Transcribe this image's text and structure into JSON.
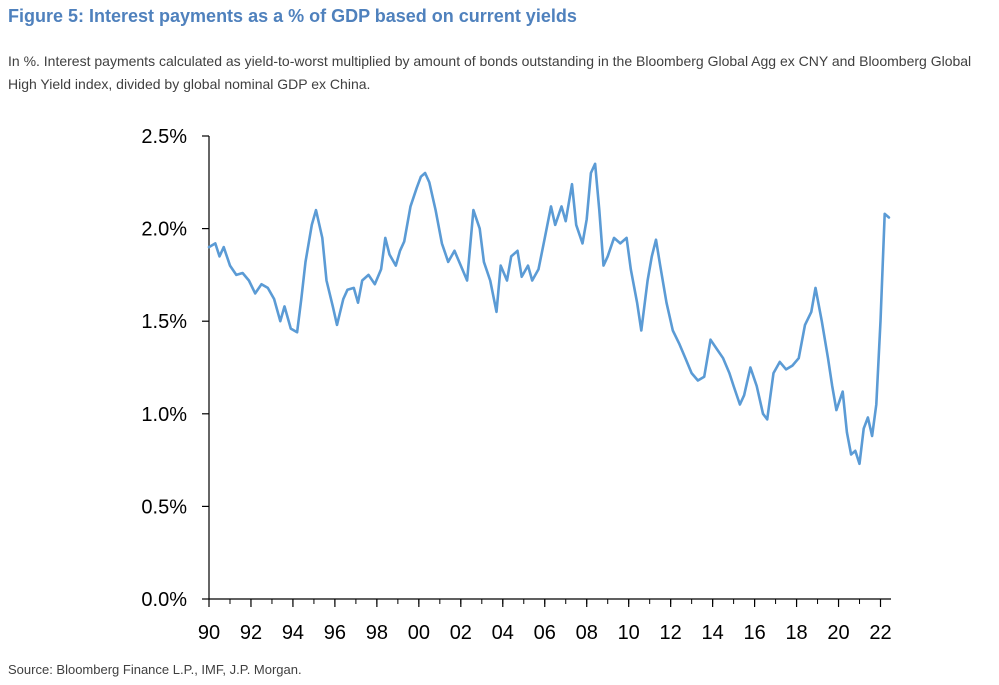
{
  "header": {
    "title": "Figure 5: Interest payments as a % of GDP based on current yields",
    "subtitle": "In %. Interest payments calculated as yield-to-worst multiplied by amount of bonds outstanding in the Bloomberg Global Agg ex CNY and Bloomberg Global High Yield index, divided by global nominal GDP ex China."
  },
  "footer": {
    "source": "Source: Bloomberg Finance L.P., IMF, J.P. Morgan."
  },
  "colors": {
    "line": "#5b9bd5",
    "axis": "#000000",
    "title": "#4f81bd"
  },
  "chart_data": {
    "type": "line",
    "title": "Figure 5: Interest payments as a % of GDP based on current yields",
    "xlabel": "",
    "ylabel": "",
    "xlim": [
      1990,
      2022.5
    ],
    "ylim": [
      0,
      2.5
    ],
    "y_ticks": [
      0.0,
      0.5,
      1.0,
      1.5,
      2.0,
      2.5
    ],
    "y_tick_labels": [
      "0.0%",
      "0.5%",
      "1.0%",
      "1.5%",
      "2.0%",
      "2.5%"
    ],
    "x_ticks": [
      1990,
      1992,
      1994,
      1996,
      1998,
      2000,
      2002,
      2004,
      2006,
      2008,
      2010,
      2012,
      2014,
      2016,
      2018,
      2020,
      2022
    ],
    "x_tick_labels": [
      "90",
      "92",
      "94",
      "96",
      "98",
      "00",
      "02",
      "04",
      "06",
      "08",
      "10",
      "12",
      "14",
      "16",
      "18",
      "20",
      "22"
    ],
    "grid": false,
    "legend": "none",
    "series": [
      {
        "name": "Interest payments as % of GDP",
        "x": [
          1990.0,
          1990.3,
          1990.5,
          1990.7,
          1991.0,
          1991.3,
          1991.6,
          1991.9,
          1992.2,
          1992.5,
          1992.8,
          1993.1,
          1993.4,
          1993.6,
          1993.9,
          1994.2,
          1994.4,
          1994.6,
          1994.9,
          1995.1,
          1995.4,
          1995.6,
          1995.9,
          1996.1,
          1996.4,
          1996.6,
          1996.9,
          1997.1,
          1997.3,
          1997.6,
          1997.9,
          1998.2,
          1998.4,
          1998.6,
          1998.9,
          1999.1,
          1999.3,
          1999.6,
          1999.9,
          2000.1,
          2000.3,
          2000.5,
          2000.8,
          2001.1,
          2001.4,
          2001.7,
          2002.0,
          2002.3,
          2002.6,
          2002.9,
          2003.1,
          2003.4,
          2003.7,
          2003.9,
          2004.2,
          2004.4,
          2004.7,
          2004.9,
          2005.2,
          2005.4,
          2005.7,
          2006.0,
          2006.3,
          2006.5,
          2006.8,
          2007.0,
          2007.3,
          2007.5,
          2007.8,
          2008.0,
          2008.2,
          2008.4,
          2008.6,
          2008.8,
          2009.0,
          2009.3,
          2009.6,
          2009.9,
          2010.1,
          2010.4,
          2010.6,
          2010.9,
          2011.1,
          2011.3,
          2011.5,
          2011.8,
          2012.1,
          2012.4,
          2012.7,
          2013.0,
          2013.3,
          2013.6,
          2013.9,
          2014.2,
          2014.5,
          2014.8,
          2015.0,
          2015.3,
          2015.5,
          2015.8,
          2016.1,
          2016.4,
          2016.6,
          2016.9,
          2017.2,
          2017.5,
          2017.8,
          2018.1,
          2018.4,
          2018.7,
          2018.9,
          2019.2,
          2019.5,
          2019.7,
          2019.9,
          2020.2,
          2020.4,
          2020.6,
          2020.8,
          2021.0,
          2021.2,
          2021.4,
          2021.6,
          2021.8,
          2022.0,
          2022.2,
          2022.4
        ],
        "values": [
          1.9,
          1.92,
          1.85,
          1.9,
          1.8,
          1.75,
          1.76,
          1.72,
          1.65,
          1.7,
          1.68,
          1.62,
          1.5,
          1.58,
          1.46,
          1.44,
          1.62,
          1.82,
          2.02,
          2.1,
          1.95,
          1.72,
          1.58,
          1.48,
          1.62,
          1.67,
          1.68,
          1.6,
          1.72,
          1.75,
          1.7,
          1.78,
          1.95,
          1.86,
          1.8,
          1.88,
          1.93,
          2.12,
          2.22,
          2.28,
          2.3,
          2.25,
          2.1,
          1.92,
          1.82,
          1.88,
          1.8,
          1.72,
          2.1,
          2.0,
          1.82,
          1.72,
          1.55,
          1.8,
          1.72,
          1.85,
          1.88,
          1.74,
          1.8,
          1.72,
          1.78,
          1.95,
          2.12,
          2.02,
          2.12,
          2.04,
          2.24,
          2.02,
          1.92,
          2.05,
          2.3,
          2.35,
          2.1,
          1.8,
          1.85,
          1.95,
          1.92,
          1.95,
          1.78,
          1.6,
          1.45,
          1.72,
          1.85,
          1.94,
          1.8,
          1.6,
          1.45,
          1.38,
          1.3,
          1.22,
          1.18,
          1.2,
          1.4,
          1.35,
          1.3,
          1.22,
          1.15,
          1.05,
          1.1,
          1.25,
          1.15,
          1.0,
          0.97,
          1.22,
          1.28,
          1.24,
          1.26,
          1.3,
          1.48,
          1.55,
          1.68,
          1.5,
          1.3,
          1.15,
          1.02,
          1.12,
          0.9,
          0.78,
          0.8,
          0.73,
          0.92,
          0.98,
          0.88,
          1.05,
          1.5,
          2.08,
          2.06
        ]
      }
    ]
  }
}
